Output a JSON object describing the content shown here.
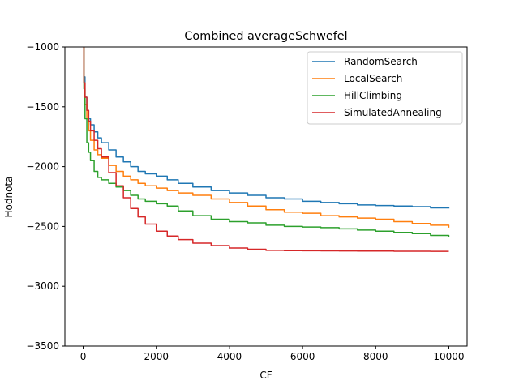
{
  "chart_data": {
    "type": "line",
    "title": "Combined averageSchwefel",
    "xlabel": "CF",
    "ylabel": "Hodnota",
    "xlim": [
      -500,
      10500
    ],
    "ylim": [
      -3500,
      -1000
    ],
    "xticks": [
      0,
      2000,
      4000,
      6000,
      8000,
      10000
    ],
    "xtick_labels": [
      "0",
      "2000",
      "4000",
      "6000",
      "8000",
      "10000"
    ],
    "yticks": [
      -1000,
      -1500,
      -2000,
      -2500,
      -3000,
      -3500
    ],
    "ytick_labels": [
      "−1000",
      "−1500",
      "−2000",
      "−2500",
      "−3000",
      "−3500"
    ],
    "grid": false,
    "legend_position": "top-right",
    "series": [
      {
        "name": "RandomSearch",
        "color": "#1f77b4",
        "x": [
          0,
          20,
          50,
          100,
          150,
          200,
          300,
          400,
          500,
          700,
          900,
          1100,
          1300,
          1500,
          1700,
          2000,
          2300,
          2600,
          3000,
          3500,
          4000,
          4500,
          5000,
          5500,
          6000,
          6500,
          7000,
          7500,
          8000,
          8500,
          9000,
          9500,
          10000
        ],
        "y": [
          -1000,
          -1250,
          -1420,
          -1530,
          -1600,
          -1650,
          -1710,
          -1760,
          -1800,
          -1860,
          -1920,
          -1960,
          -2000,
          -2040,
          -2060,
          -2080,
          -2110,
          -2140,
          -2170,
          -2200,
          -2220,
          -2240,
          -2260,
          -2270,
          -2290,
          -2300,
          -2310,
          -2320,
          -2325,
          -2330,
          -2335,
          -2345,
          -2350
        ]
      },
      {
        "name": "LocalSearch",
        "color": "#ff7f0e",
        "x": [
          0,
          20,
          50,
          100,
          150,
          200,
          300,
          400,
          500,
          700,
          900,
          1100,
          1300,
          1500,
          1700,
          2000,
          2300,
          2600,
          3000,
          3500,
          4000,
          4500,
          5000,
          5500,
          6000,
          6500,
          7000,
          7500,
          8000,
          8500,
          9000,
          9500,
          10000
        ],
        "y": [
          -1000,
          -1300,
          -1480,
          -1600,
          -1700,
          -1780,
          -1860,
          -1900,
          -1930,
          -1990,
          -2040,
          -2080,
          -2110,
          -2140,
          -2160,
          -2180,
          -2200,
          -2220,
          -2240,
          -2270,
          -2300,
          -2330,
          -2360,
          -2380,
          -2390,
          -2410,
          -2420,
          -2430,
          -2440,
          -2460,
          -2475,
          -2490,
          -2510
        ]
      },
      {
        "name": "HillClimbing",
        "color": "#2ca02c",
        "x": [
          0,
          20,
          50,
          100,
          150,
          200,
          300,
          400,
          500,
          700,
          900,
          1100,
          1300,
          1500,
          1700,
          2000,
          2300,
          2600,
          3000,
          3500,
          4000,
          4500,
          5000,
          5500,
          6000,
          6500,
          7000,
          7500,
          8000,
          8500,
          9000,
          9500,
          10000
        ],
        "y": [
          -1000,
          -1350,
          -1600,
          -1800,
          -1880,
          -1950,
          -2040,
          -2090,
          -2110,
          -2140,
          -2170,
          -2200,
          -2240,
          -2270,
          -2290,
          -2310,
          -2330,
          -2370,
          -2410,
          -2440,
          -2460,
          -2470,
          -2490,
          -2500,
          -2505,
          -2510,
          -2520,
          -2530,
          -2540,
          -2550,
          -2560,
          -2575,
          -2585
        ]
      },
      {
        "name": "SimulatedAnnealing",
        "color": "#d62728",
        "x": [
          0,
          20,
          50,
          100,
          150,
          200,
          300,
          400,
          500,
          700,
          900,
          1100,
          1300,
          1500,
          1700,
          2000,
          2300,
          2600,
          3000,
          3500,
          4000,
          4500,
          5000,
          5500,
          6000,
          6500,
          7000,
          7500,
          8000,
          8500,
          9000,
          9500,
          10000
        ],
        "y": [
          -1000,
          -1300,
          -1420,
          -1530,
          -1620,
          -1700,
          -1780,
          -1850,
          -1920,
          -2050,
          -2160,
          -2260,
          -2350,
          -2420,
          -2480,
          -2540,
          -2580,
          -2610,
          -2640,
          -2660,
          -2680,
          -2690,
          -2700,
          -2702,
          -2703,
          -2704,
          -2705,
          -2706,
          -2706,
          -2707,
          -2707,
          -2708,
          -2708
        ]
      }
    ]
  }
}
